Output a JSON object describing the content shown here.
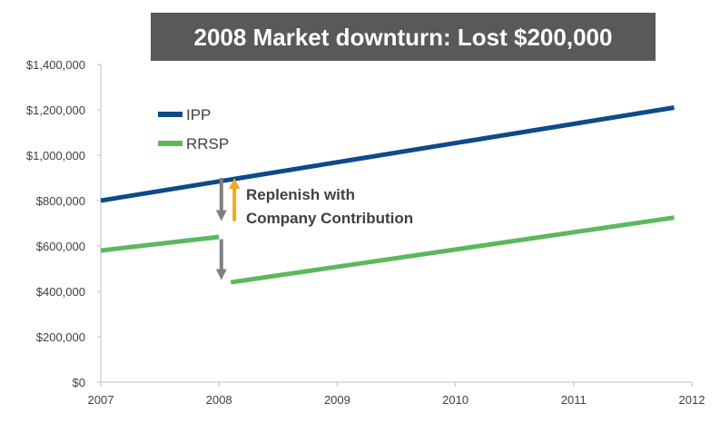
{
  "chart_data": {
    "type": "line",
    "title": "2008 Market downturn: Lost $200,000",
    "x_ticks": [
      "2007",
      "2008",
      "2009",
      "2010",
      "2011",
      "2012"
    ],
    "y_ticks": [
      "$0",
      "$200,000",
      "$400,000",
      "$600,000",
      "$800,000",
      "$1,000,000",
      "$1,200,000",
      "$1,400,000"
    ],
    "xlim": [
      2007,
      2012
    ],
    "ylim": [
      0,
      1400000
    ],
    "grid": false,
    "legend_position": "top-left",
    "series": [
      {
        "name": "IPP",
        "color": "#0e4a8a",
        "segments": [
          [
            [
              2007,
              800000
            ],
            [
              2011.85,
              1210000
            ]
          ]
        ]
      },
      {
        "name": "RRSP",
        "color": "#5cb85c",
        "segments": [
          [
            [
              2007,
              580000
            ],
            [
              2008,
              640000
            ]
          ],
          [
            [
              2008.1,
              440000
            ],
            [
              2011.85,
              725000
            ]
          ]
        ]
      }
    ],
    "annotations": {
      "text_line1": "Replenish with",
      "text_line2": "Company Contribution",
      "down_arrow_color": "#808080",
      "up_arrow_color": "#f5a623",
      "arrows": [
        {
          "kind": "down",
          "x": 2008.02,
          "from": 900000,
          "to": 710000
        },
        {
          "kind": "up",
          "x": 2008.13,
          "from": 710000,
          "to": 900000
        },
        {
          "kind": "down",
          "x": 2008.02,
          "from": 630000,
          "to": 450000
        }
      ]
    }
  }
}
